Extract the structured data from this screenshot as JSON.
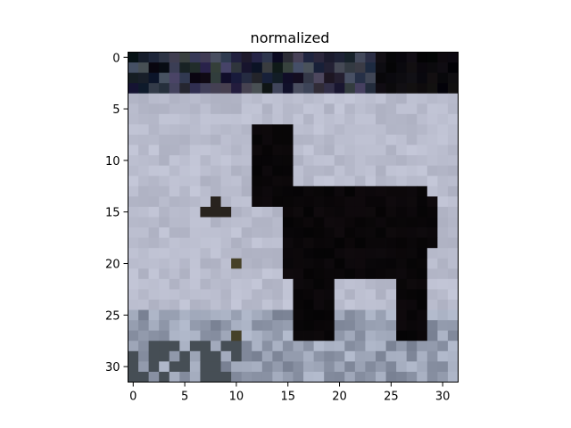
{
  "chart_data": {
    "type": "heatmap",
    "title": "normalized",
    "xlabel": "",
    "ylabel": "",
    "xlim": [
      -0.5,
      31.5
    ],
    "ylim": [
      31.5,
      -0.5
    ],
    "xticks": [
      0,
      5,
      10,
      15,
      20,
      25,
      30
    ],
    "yticks": [
      0,
      5,
      10,
      15,
      20,
      25,
      30
    ],
    "grid_size": [
      32,
      32
    ],
    "content": "low-resolution image of a dark animal (llama-like silhouette) standing on snowy, light gray-blue ground with a dark band along the top rows",
    "colors": {
      "background": "#b9bcc9",
      "animal": "#050405",
      "top_band": "#2a2d38",
      "frame": "#000000"
    }
  }
}
